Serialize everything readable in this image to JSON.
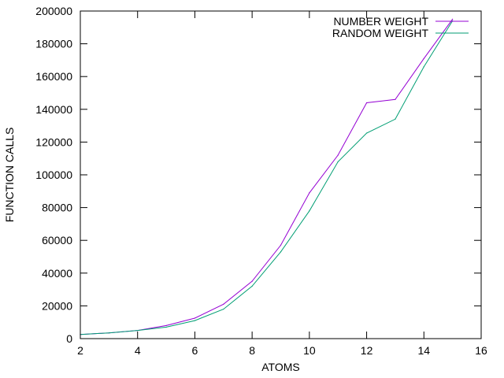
{
  "chart_data": {
    "type": "line",
    "xlabel": "ATOMS",
    "ylabel": "FUNCTION CALLS",
    "xlim": [
      2,
      16
    ],
    "ylim": [
      0,
      200000
    ],
    "xticks": [
      2,
      4,
      6,
      8,
      10,
      12,
      14,
      16
    ],
    "yticks": [
      0,
      20000,
      40000,
      60000,
      80000,
      100000,
      120000,
      140000,
      160000,
      180000,
      200000
    ],
    "grid": false,
    "legend": "top-right",
    "x": [
      2,
      3,
      4,
      5,
      6,
      7,
      8,
      9,
      10,
      11,
      12,
      13,
      14,
      15
    ],
    "series": [
      {
        "name": "NUMBER WEIGHT",
        "color": "#9400d3",
        "values": [
          2500,
          3500,
          5000,
          8000,
          12500,
          21000,
          35000,
          57000,
          89000,
          112000,
          144000,
          146000,
          171000,
          195000
        ]
      },
      {
        "name": "RANDOM WEIGHT",
        "color": "#009e73",
        "values": [
          2500,
          3500,
          5000,
          7000,
          11000,
          18000,
          32000,
          53000,
          78000,
          108000,
          125500,
          134000,
          166000,
          194000
        ]
      }
    ]
  }
}
